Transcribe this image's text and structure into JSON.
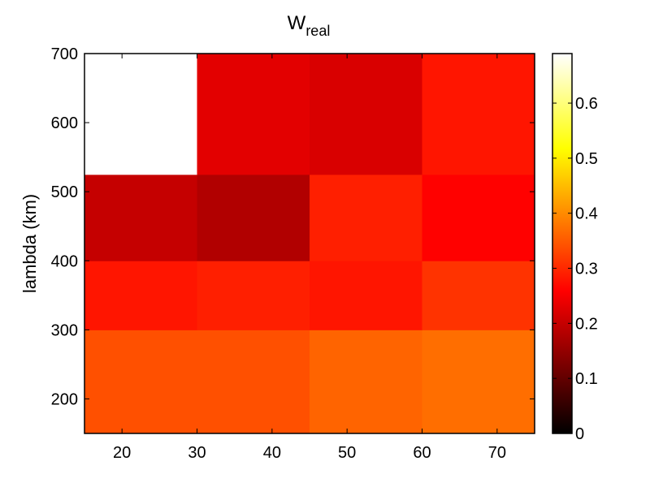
{
  "chart_data": {
    "type": "heatmap",
    "title": "W",
    "title_subscript": "real",
    "xlabel": "",
    "ylabel": "lambda (km)",
    "colormap": "hot",
    "x_centers": [
      20,
      40,
      55,
      70
    ],
    "y_centers": [
      200,
      325,
      500,
      650
    ],
    "x_edges": [
      15,
      30,
      45,
      60,
      75
    ],
    "y_edges": [
      150,
      300,
      400,
      525,
      700
    ],
    "xlim": [
      15,
      75
    ],
    "ylim": [
      150,
      700
    ],
    "xticks": [
      20,
      30,
      40,
      50,
      60,
      70
    ],
    "yticks": [
      200,
      300,
      400,
      500,
      600,
      700
    ],
    "values": [
      [
        0.34,
        0.34,
        0.36,
        0.37
      ],
      [
        0.28,
        0.29,
        0.28,
        0.31
      ],
      [
        0.2,
        0.18,
        0.29,
        0.26
      ],
      [
        0.69,
        0.23,
        0.22,
        0.28
      ]
    ],
    "colorbar": {
      "min": 0,
      "max": 0.69,
      "ticks": [
        0,
        0.1,
        0.2,
        0.3,
        0.4,
        0.5,
        0.6
      ],
      "tick_labels": [
        "0",
        "0.1",
        "0.2",
        "0.3",
        "0.4",
        "0.5",
        "0.6"
      ]
    },
    "grid": false,
    "legend": "none"
  }
}
